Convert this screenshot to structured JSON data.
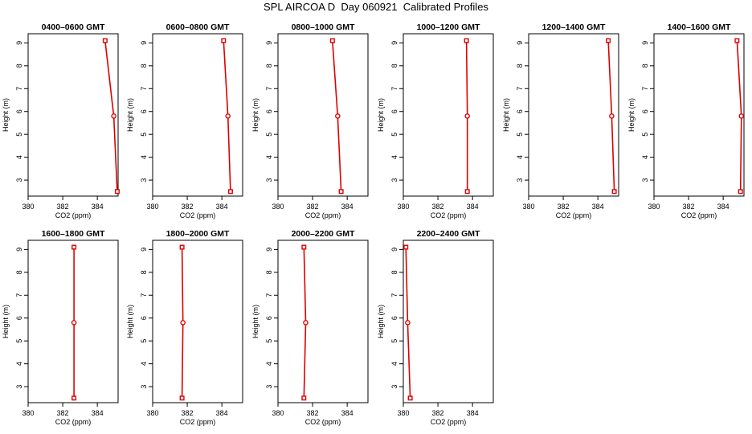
{
  "title": "SPL AIRCOA D  Day 060921  Calibrated Profiles",
  "colors": {
    "series": "#dd0000",
    "axis": "#000000"
  },
  "chart_data": [
    {
      "type": "line",
      "title": "0400–0600 GMT",
      "xlabel": "CO2 (ppm)",
      "ylabel": "Height (m)",
      "xlim": [
        380,
        385.2
      ],
      "ylim": [
        2.3,
        9.4
      ],
      "xticks": [
        380,
        382,
        384
      ],
      "yticks": [
        3,
        4,
        5,
        6,
        7,
        8,
        9
      ],
      "x": [
        384.45,
        384.95,
        385.15
      ],
      "y": [
        9.1,
        5.8,
        2.5
      ]
    },
    {
      "type": "line",
      "title": "0600–0800 GMT",
      "xlabel": "CO2 (ppm)",
      "ylabel": "Height (m)",
      "xlim": [
        380,
        385.2
      ],
      "ylim": [
        2.3,
        9.4
      ],
      "xticks": [
        380,
        382,
        384
      ],
      "yticks": [
        3,
        4,
        5,
        6,
        7,
        8,
        9
      ],
      "x": [
        384.1,
        384.35,
        384.5
      ],
      "y": [
        9.1,
        5.8,
        2.5
      ]
    },
    {
      "type": "line",
      "title": "0800–1000 GMT",
      "xlabel": "CO2 (ppm)",
      "ylabel": "Height (m)",
      "xlim": [
        380,
        385.2
      ],
      "ylim": [
        2.3,
        9.4
      ],
      "xticks": [
        380,
        382,
        384
      ],
      "yticks": [
        3,
        4,
        5,
        6,
        7,
        8,
        9
      ],
      "x": [
        383.15,
        383.45,
        383.65
      ],
      "y": [
        9.1,
        5.8,
        2.5
      ]
    },
    {
      "type": "line",
      "title": "1000–1200 GMT",
      "xlabel": "CO2 (ppm)",
      "ylabel": "Height (m)",
      "xlim": [
        380,
        385.2
      ],
      "ylim": [
        2.3,
        9.4
      ],
      "xticks": [
        380,
        382,
        384
      ],
      "yticks": [
        3,
        4,
        5,
        6,
        7,
        8,
        9
      ],
      "x": [
        383.65,
        383.7,
        383.7
      ],
      "y": [
        9.1,
        5.8,
        2.5
      ]
    },
    {
      "type": "line",
      "title": "1200–1400 GMT",
      "xlabel": "CO2 (ppm)",
      "ylabel": "Height (m)",
      "xlim": [
        380,
        385.2
      ],
      "ylim": [
        2.3,
        9.4
      ],
      "xticks": [
        380,
        382,
        384
      ],
      "yticks": [
        3,
        4,
        5,
        6,
        7,
        8,
        9
      ],
      "x": [
        384.6,
        384.8,
        384.95
      ],
      "y": [
        9.1,
        5.8,
        2.5
      ]
    },
    {
      "type": "line",
      "title": "1400–1600 GMT",
      "xlabel": "CO2 (ppm)",
      "ylabel": "Height (m)",
      "xlim": [
        380,
        385.2
      ],
      "ylim": [
        2.3,
        9.4
      ],
      "xticks": [
        380,
        382,
        384
      ],
      "yticks": [
        3,
        4,
        5,
        6,
        7,
        8,
        9
      ],
      "x": [
        384.8,
        385.05,
        385.0
      ],
      "y": [
        9.1,
        5.8,
        2.5
      ]
    },
    {
      "type": "line",
      "title": "1600–1800 GMT",
      "xlabel": "CO2 (ppm)",
      "ylabel": "Height (m)",
      "xlim": [
        380,
        385.2
      ],
      "ylim": [
        2.3,
        9.4
      ],
      "xticks": [
        380,
        382,
        384
      ],
      "yticks": [
        3,
        4,
        5,
        6,
        7,
        8,
        9
      ],
      "x": [
        382.65,
        382.65,
        382.65
      ],
      "y": [
        9.1,
        5.8,
        2.5
      ]
    },
    {
      "type": "line",
      "title": "1800–2000 GMT",
      "xlabel": "CO2 (ppm)",
      "ylabel": "Height (m)",
      "xlim": [
        380,
        385.2
      ],
      "ylim": [
        2.3,
        9.4
      ],
      "xticks": [
        380,
        382,
        384
      ],
      "yticks": [
        3,
        4,
        5,
        6,
        7,
        8,
        9
      ],
      "x": [
        381.7,
        381.75,
        381.7
      ],
      "y": [
        9.1,
        5.8,
        2.5
      ]
    },
    {
      "type": "line",
      "title": "2000–2200 GMT",
      "xlabel": "CO2 (ppm)",
      "ylabel": "Height (m)",
      "xlim": [
        380,
        385.2
      ],
      "ylim": [
        2.3,
        9.4
      ],
      "xticks": [
        380,
        382,
        384
      ],
      "yticks": [
        3,
        4,
        5,
        6,
        7,
        8,
        9
      ],
      "x": [
        381.5,
        381.6,
        381.5
      ],
      "y": [
        9.1,
        5.8,
        2.5
      ]
    },
    {
      "type": "line",
      "title": "2200–2400 GMT",
      "xlabel": "CO2 (ppm)",
      "ylabel": "Height (m)",
      "xlim": [
        380,
        385.2
      ],
      "ylim": [
        2.3,
        9.4
      ],
      "xticks": [
        380,
        382,
        384
      ],
      "yticks": [
        3,
        4,
        5,
        6,
        7,
        8,
        9
      ],
      "x": [
        380.15,
        380.25,
        380.4
      ],
      "y": [
        9.1,
        5.8,
        2.5
      ]
    }
  ]
}
